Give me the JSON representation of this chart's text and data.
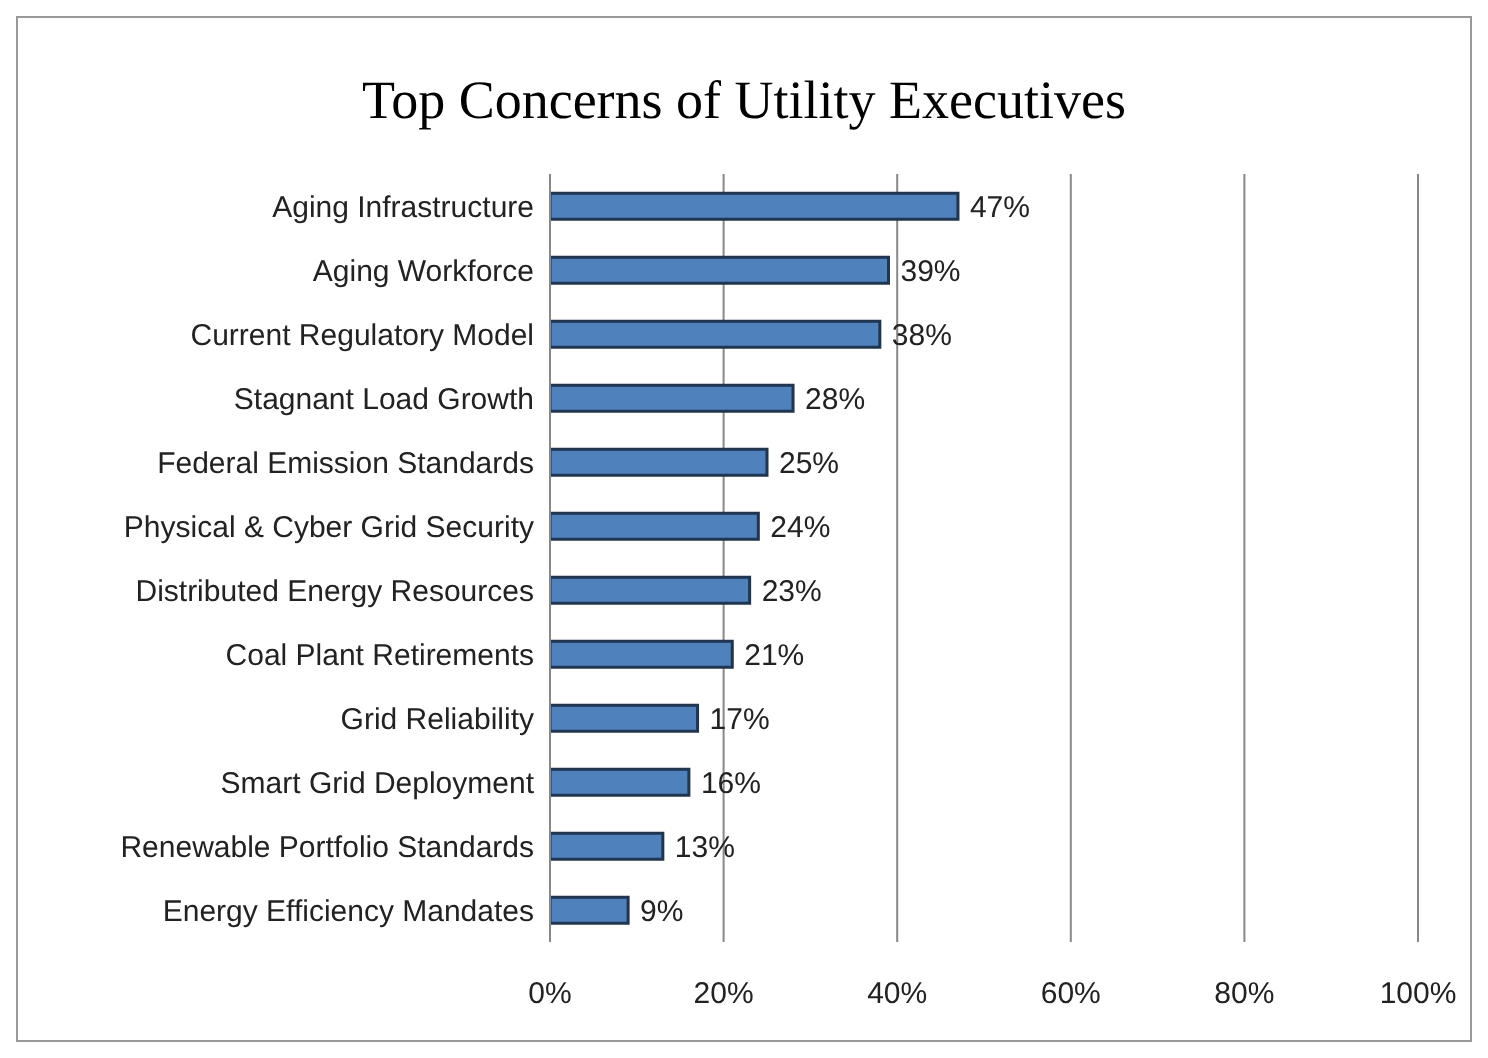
{
  "chart_data": {
    "type": "bar",
    "orientation": "horizontal",
    "title": "Top Concerns of Utility Executives",
    "categories": [
      "Aging Infrastructure",
      "Aging Workforce",
      "Current Regulatory Model",
      "Stagnant Load Growth",
      "Federal Emission Standards",
      "Physical & Cyber Grid Security",
      "Distributed Energy Resources",
      "Coal Plant Retirements",
      "Grid Reliability",
      "Smart Grid Deployment",
      "Renewable Portfolio Standards",
      "Energy Efficiency Mandates"
    ],
    "values": [
      47,
      39,
      38,
      28,
      25,
      24,
      23,
      21,
      17,
      16,
      13,
      9
    ],
    "value_labels": [
      "47%",
      "39%",
      "38%",
      "28%",
      "25%",
      "24%",
      "23%",
      "21%",
      "17%",
      "16%",
      "13%",
      "9%"
    ],
    "color": "#4f81bd",
    "xlim": [
      0,
      100
    ],
    "xticks": [
      {
        "value": 0,
        "label": "0%"
      },
      {
        "value": 20,
        "label": "20%"
      },
      {
        "value": 40,
        "label": "40%"
      },
      {
        "value": 60,
        "label": "60%"
      },
      {
        "value": 80,
        "label": "80%"
      },
      {
        "value": 100,
        "label": "100%"
      }
    ],
    "grid": "x",
    "legend": false
  }
}
